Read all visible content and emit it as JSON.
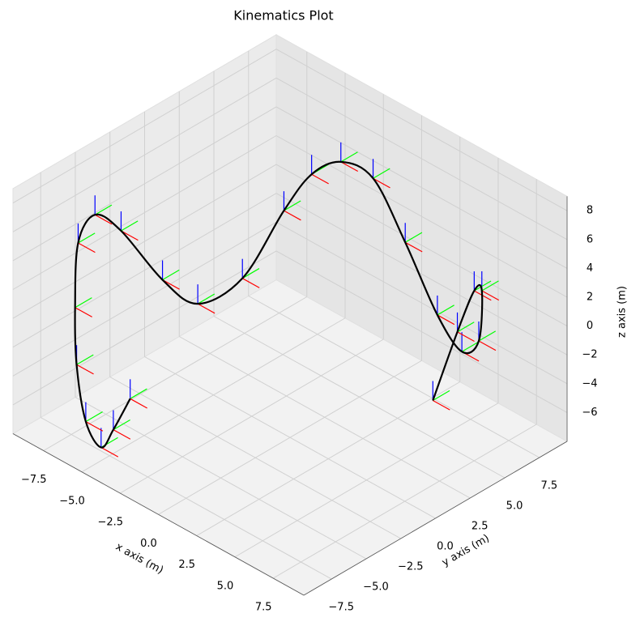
{
  "chart_data": {
    "type": "line3d",
    "title": "Kinematics Plot",
    "xlabel": "x axis (m)",
    "ylabel": "y axis (m)",
    "zlabel": "z axis (m)",
    "x": [
      -3.2,
      -4.3,
      -5.1,
      -6.1,
      -6.7,
      -6.8,
      -6.6,
      -5.5,
      -4.7,
      -2.9,
      -1.5,
      -1.3,
      -0.4,
      -0.4,
      -0.3,
      0.9,
      3.0,
      5.1,
      6.7,
      6.9,
      7.1,
      6.6,
      5.5,
      3.9
    ],
    "y": [
      -8,
      -8,
      -8,
      -8,
      -8,
      -8,
      -8,
      -8,
      -7,
      -6,
      -5,
      -2,
      0,
      2,
      4,
      5,
      5,
      5,
      5,
      6,
      6,
      6,
      6,
      6
    ],
    "z": [
      -2.7,
      -5.5,
      -7.2,
      -6.0,
      -2.4,
      1.5,
      6.1,
      8.7,
      7.5,
      4.6,
      3.2,
      3.4,
      7.5,
      8.9,
      8.7,
      7.7,
      4.5,
      0.7,
      -0.9,
      -0.6,
      3.0,
      2.7,
      -0.8,
      -6.5
    ],
    "color": "#000000",
    "frame_colors": [
      "#ff0000",
      "#00ff00",
      "#0000ff"
    ],
    "xlim": [
      -9.5,
      9.5
    ],
    "ylim": [
      -9.5,
      9.5
    ],
    "zlim": [
      -8,
      9
    ],
    "xticks": [
      {
        "value": -7.5,
        "label": "−7.5"
      },
      {
        "value": -5,
        "label": "−5.0"
      },
      {
        "value": -2.5,
        "label": "−2.5"
      },
      {
        "value": 0,
        "label": "0.0"
      },
      2.5,
      {
        "value": 5,
        "label": "5.0"
      },
      7.5
    ],
    "yticks": [
      {
        "value": -7.5,
        "label": "−7.5"
      },
      {
        "value": -5,
        "label": "−5.0"
      },
      {
        "value": -2.5,
        "label": "−2.5"
      },
      {
        "value": 0,
        "label": "0.0"
      },
      2.5,
      {
        "value": 5,
        "label": "5.0"
      },
      7.5
    ],
    "zticks": [
      {
        "value": -6,
        "label": "−6"
      },
      {
        "value": -4,
        "label": "−4"
      },
      {
        "value": -2,
        "label": "−2"
      },
      0,
      2,
      4,
      6,
      8
    ],
    "grid": true
  }
}
